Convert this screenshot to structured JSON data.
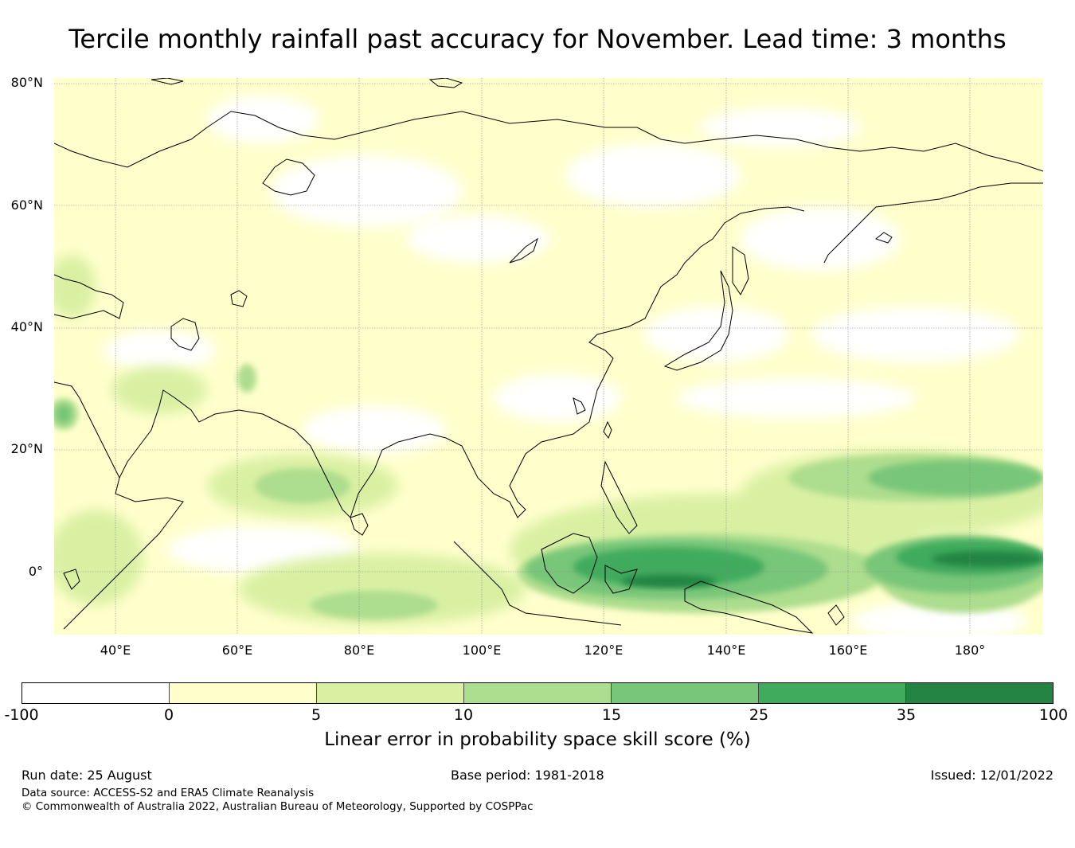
{
  "title": "Tercile monthly rainfall past accuracy for November. Lead time: 3 months",
  "map": {
    "lat_labels": [
      "80°N",
      "60°N",
      "40°N",
      "20°N",
      "0°"
    ],
    "lon_labels": [
      "40°E",
      "60°E",
      "80°E",
      "100°E",
      "120°E",
      "140°E",
      "160°E",
      "180°"
    ]
  },
  "colorbar": {
    "label": "Linear error in probability space skill score (%)",
    "ticks": [
      "-100",
      "0",
      "5",
      "10",
      "15",
      "25",
      "35",
      "100"
    ],
    "colors": [
      "#ffffff",
      "#ffffcc",
      "#d9f0a3",
      "#addd8e",
      "#78c679",
      "#41ab5d",
      "#238443"
    ]
  },
  "footer": {
    "run_date": "Run date: 25 August",
    "base_period": "Base period: 1981-2018",
    "issued": "Issued: 12/01/2022",
    "data_source": "Data source: ACCESS-S2 and ERA5 Climate Reanalysis",
    "copyright": "© Commonwealth of Australia 2022, Australian Bureau of Meteorology, Supported by COSPPac"
  }
}
